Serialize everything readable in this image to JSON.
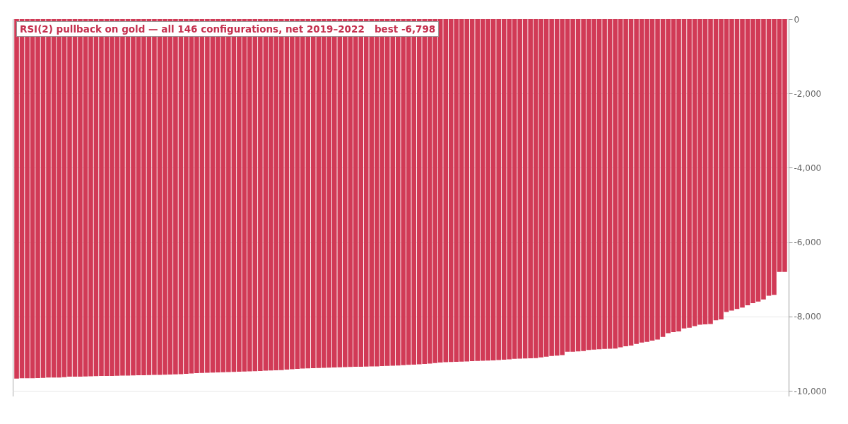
{
  "chart_data": {
    "type": "bar",
    "title": "RSI(2) pullback on gold — all 146 configurations, net 2019–2022   best -6,798",
    "categories": [
      null,
      null,
      null,
      null,
      null,
      null,
      null,
      null,
      null,
      null,
      null,
      null,
      null,
      null,
      null,
      null,
      null,
      null,
      null,
      null,
      null,
      null,
      null,
      null,
      null,
      null,
      null,
      null,
      null,
      null,
      null,
      null,
      null,
      null,
      null,
      null,
      null,
      null,
      null,
      null,
      null,
      null,
      null,
      null,
      null,
      null,
      null,
      null,
      null,
      null,
      null,
      null,
      null,
      null,
      null,
      null,
      null,
      null,
      null,
      null,
      null,
      null,
      null,
      null,
      null,
      null,
      null,
      null,
      null,
      null,
      null,
      null,
      null,
      null,
      null,
      null,
      null,
      null,
      null,
      null,
      null,
      null,
      null,
      null,
      null,
      null,
      null,
      null,
      null,
      null,
      null,
      null,
      null,
      null,
      null,
      null,
      null,
      null,
      null,
      null,
      null,
      null,
      null,
      null,
      null,
      null,
      null,
      null,
      null,
      null,
      null,
      null,
      null,
      null,
      null,
      null,
      null,
      null,
      null,
      null,
      null,
      null,
      null,
      null,
      null,
      null,
      null,
      null,
      null,
      null,
      null,
      null,
      null,
      null,
      null,
      null,
      null,
      null,
      null,
      null,
      null,
      null,
      null,
      null,
      null,
      null
    ],
    "values": [
      -9670,
      -9660,
      -9660,
      -9660,
      -9655,
      -9650,
      -9640,
      -9640,
      -9640,
      -9630,
      -9620,
      -9620,
      -9620,
      -9615,
      -9610,
      -9605,
      -9600,
      -9600,
      -9600,
      -9595,
      -9590,
      -9590,
      -9585,
      -9580,
      -9580,
      -9575,
      -9570,
      -9570,
      -9565,
      -9560,
      -9555,
      -9550,
      -9540,
      -9530,
      -9525,
      -9520,
      -9515,
      -9510,
      -9505,
      -9500,
      -9495,
      -9490,
      -9485,
      -9480,
      -9475,
      -9470,
      -9465,
      -9455,
      -9450,
      -9445,
      -9440,
      -9430,
      -9420,
      -9410,
      -9400,
      -9395,
      -9390,
      -9385,
      -9380,
      -9375,
      -9370,
      -9365,
      -9360,
      -9355,
      -9350,
      -9350,
      -9345,
      -9340,
      -9340,
      -9335,
      -9330,
      -9325,
      -9320,
      -9310,
      -9300,
      -9295,
      -9285,
      -9275,
      -9265,
      -9250,
      -9240,
      -9230,
      -9225,
      -9220,
      -9215,
      -9210,
      -9200,
      -9195,
      -9190,
      -9185,
      -9180,
      -9170,
      -9160,
      -9150,
      -9140,
      -9135,
      -9130,
      -9125,
      -9120,
      -9100,
      -9080,
      -9060,
      -9050,
      -9040,
      -8950,
      -8950,
      -8940,
      -8930,
      -8900,
      -8890,
      -8880,
      -8870,
      -8865,
      -8860,
      -8830,
      -8800,
      -8780,
      -8740,
      -8700,
      -8680,
      -8650,
      -8620,
      -8550,
      -8450,
      -8420,
      -8400,
      -8320,
      -8300,
      -8260,
      -8220,
      -8210,
      -8200,
      -8100,
      -8080,
      -7880,
      -7840,
      -7800,
      -7760,
      -7700,
      -7640,
      -7600,
      -7540,
      -7440,
      -7420,
      -6800,
      -6798
    ],
    "color": "#d13a56",
    "ylim": [
      -10150,
      0
    ],
    "yticks": [
      0,
      {
        "value": -2000,
        "label": "-2,000"
      },
      {
        "value": -4000,
        "label": "-4,000"
      },
      {
        "value": -6000,
        "label": "-6,000"
      },
      {
        "value": -8000,
        "label": "-8,000"
      },
      {
        "value": -10000,
        "label": "-10,000"
      }
    ],
    "grid": "y",
    "tick_labels": "y"
  }
}
